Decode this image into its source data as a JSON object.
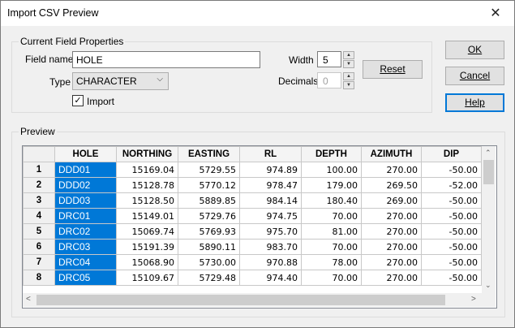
{
  "window": {
    "title": "Import CSV Preview",
    "close_glyph": "✕"
  },
  "field_props": {
    "legend": "Current Field Properties",
    "field_name_label": "Field name",
    "field_name_value": "HOLE",
    "type_label": "Type",
    "type_value": "CHARACTER",
    "import_label": "Import",
    "import_checked": true,
    "width_label": "Width",
    "width_value": "5",
    "decimals_label": "Decimals",
    "decimals_value": "0",
    "reset_label": "Reset"
  },
  "buttons": {
    "ok": "OK",
    "cancel": "Cancel",
    "help": "Help"
  },
  "preview": {
    "legend": "Preview",
    "columns": [
      "HOLE",
      "NORTHING",
      "EASTING",
      "RL",
      "DEPTH",
      "AZIMUTH",
      "DIP"
    ],
    "rows": [
      {
        "num": "1",
        "cells": [
          "DDD01",
          "15169.04",
          "5729.55",
          "974.89",
          "100.00",
          "270.00",
          "-50.00"
        ]
      },
      {
        "num": "2",
        "cells": [
          "DDD02",
          "15128.78",
          "5770.12",
          "978.47",
          "179.00",
          "269.50",
          "-52.00"
        ]
      },
      {
        "num": "3",
        "cells": [
          "DDD03",
          "15128.50",
          "5889.85",
          "984.14",
          "180.40",
          "269.00",
          "-50.00"
        ]
      },
      {
        "num": "4",
        "cells": [
          "DRC01",
          "15149.01",
          "5729.76",
          "974.75",
          "70.00",
          "270.00",
          "-50.00"
        ]
      },
      {
        "num": "5",
        "cells": [
          "DRC02",
          "15069.74",
          "5769.93",
          "975.70",
          "81.00",
          "270.00",
          "-50.00"
        ]
      },
      {
        "num": "6",
        "cells": [
          "DRC03",
          "15191.39",
          "5890.11",
          "983.70",
          "70.00",
          "270.00",
          "-50.00"
        ]
      },
      {
        "num": "7",
        "cells": [
          "DRC04",
          "15068.90",
          "5730.00",
          "970.88",
          "78.00",
          "270.00",
          "-50.00"
        ]
      },
      {
        "num": "8",
        "cells": [
          "DRC05",
          "15109.67",
          "5729.48",
          "974.40",
          "70.00",
          "270.00",
          "-50.00"
        ]
      }
    ]
  },
  "colors": {
    "selection": "#0078d7",
    "focus": "#0078d7"
  }
}
